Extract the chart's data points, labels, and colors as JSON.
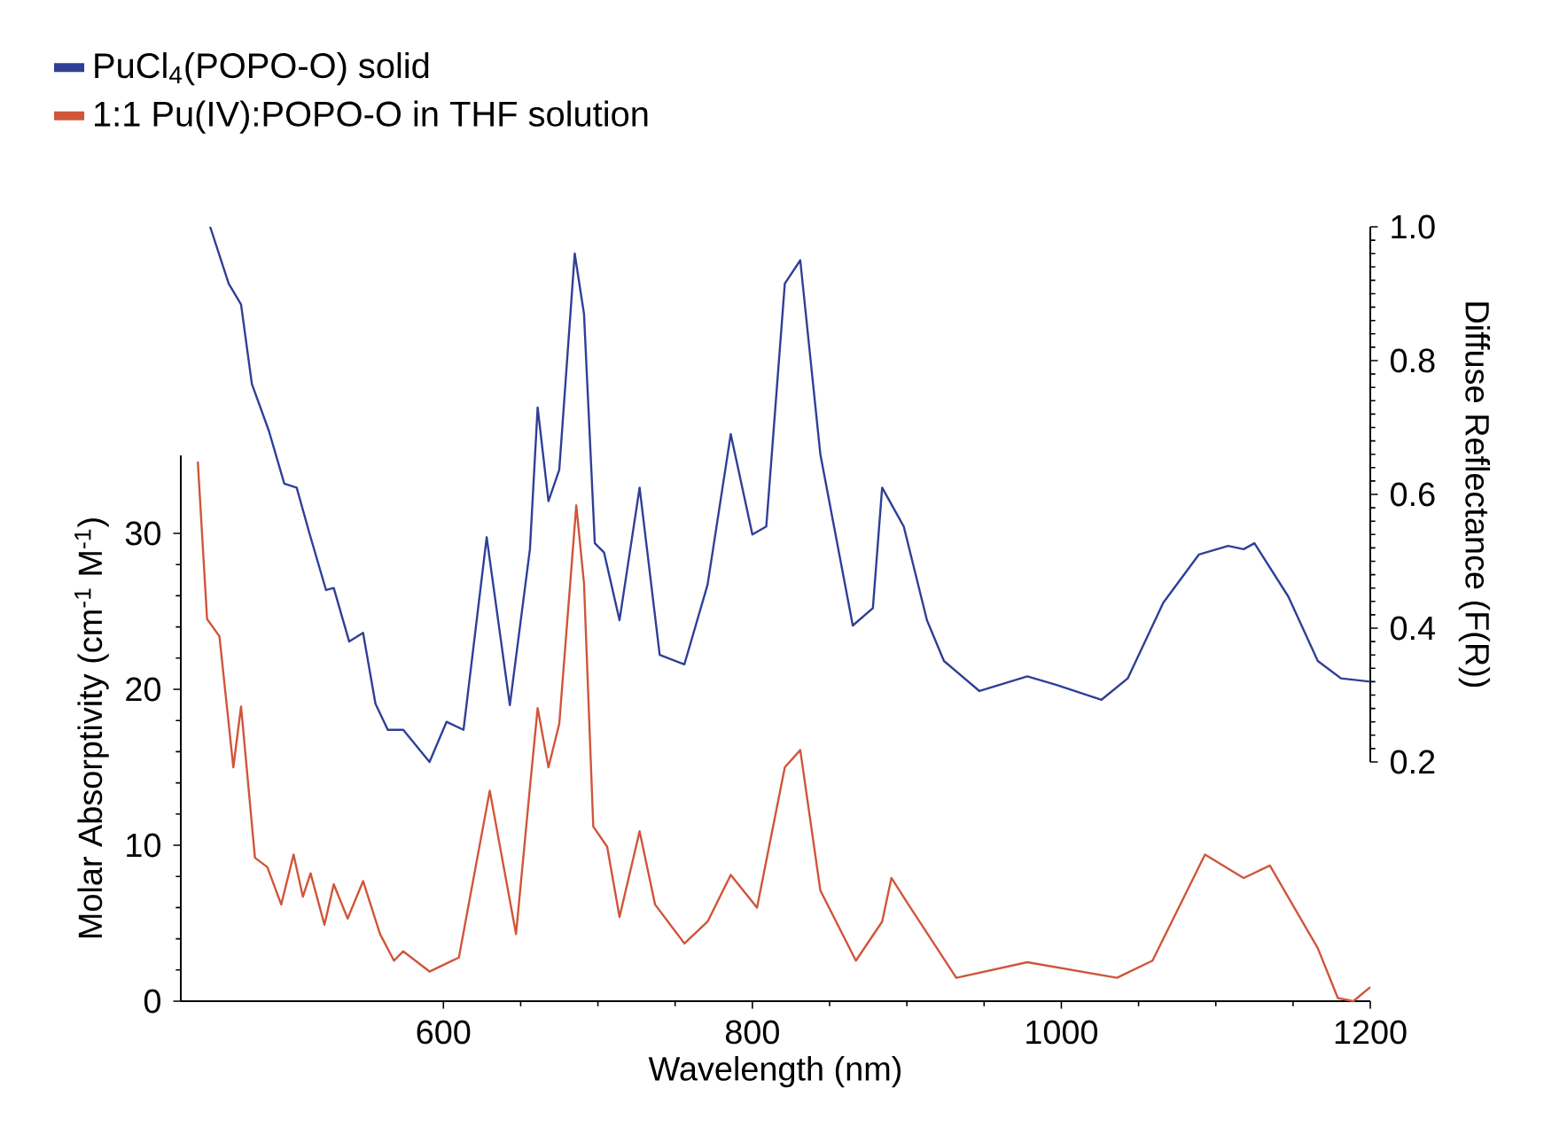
{
  "chart_data": {
    "type": "line",
    "xlabel": "Wavelength (nm)",
    "ylabel": "Molar Absorptivity (cm$^{-1}$ M$^{-1}$)",
    "y2label": "Diffuse Reflectance (F(R))",
    "xlim": [
      430,
      1200
    ],
    "xticks": [
      600,
      800,
      1000,
      1200
    ],
    "ylim": [
      0,
      35
    ],
    "yticks": [
      0,
      10,
      20,
      30
    ],
    "y2lim": [
      0.2,
      1.0
    ],
    "y2ticks": [
      0.2,
      0.4,
      0.6,
      0.8,
      {
        "value": 1,
        "label": "1.0"
      }
    ],
    "legend": "top left",
    "marker": "none",
    "line_style": "solid",
    "series": [
      {
        "name": "PuCl$_{4}$(POPO-O) solid",
        "color": "#2f3f96",
        "axis": "y2",
        "x": [
          449,
          461,
          469,
          476,
          487,
          497,
          505,
          513,
          524,
          529,
          539,
          548,
          556,
          564,
          574,
          591,
          602,
          613,
          628,
          643,
          656,
          661,
          668,
          675,
          685,
          691,
          698,
          704,
          714,
          727,
          740,
          756,
          771,
          786,
          800,
          809,
          821,
          831,
          844,
          865,
          878,
          884,
          898,
          913,
          924,
          947,
          978,
          997,
          1026,
          1043,
          1066,
          1089,
          1108,
          1118,
          1125,
          1147,
          1166,
          1181,
          1200
        ],
        "values": [
          1.0,
          0.915,
          0.884,
          0.765,
          0.695,
          0.616,
          0.61,
          0.544,
          0.457,
          0.46,
          0.38,
          0.393,
          0.287,
          0.248,
          0.248,
          0.2,
          0.26,
          0.248,
          0.536,
          0.285,
          0.518,
          0.73,
          0.59,
          0.637,
          0.96,
          0.87,
          0.527,
          0.513,
          0.412,
          0.61,
          0.36,
          0.346,
          0.465,
          0.69,
          0.54,
          0.552,
          0.915,
          0.95,
          0.66,
          0.404,
          0.43,
          0.61,
          0.552,
          0.412,
          0.351,
          0.306,
          0.328,
          0.315,
          0.293,
          0.325,
          0.438,
          0.51,
          0.523,
          0.518,
          0.527,
          0.447,
          0.351,
          0.325,
          0.32
        ]
      },
      {
        "name": "1:1 Pu(IV):POPO-O in THF solution",
        "color": "#d0553a",
        "x": [
          441,
          447,
          455,
          464,
          469,
          478,
          486,
          495,
          503,
          509,
          514,
          523,
          529,
          538,
          548,
          559,
          568,
          574,
          591,
          610,
          630,
          647,
          656,
          661,
          668,
          675,
          686,
          691,
          697,
          706,
          714,
          727,
          737,
          756,
          771,
          786,
          803,
          821,
          831,
          844,
          867,
          884,
          890,
          901,
          932,
          978,
          1036,
          1059,
          1093,
          1118,
          1135,
          1166,
          1179,
          1189,
          1200
        ],
        "values": [
          34.6,
          24.5,
          23.4,
          15.0,
          18.9,
          9.2,
          8.6,
          6.2,
          9.4,
          6.7,
          8.2,
          4.9,
          7.5,
          5.3,
          7.7,
          4.3,
          2.6,
          3.2,
          1.9,
          2.8,
          13.5,
          4.3,
          13.7,
          18.8,
          15.0,
          17.8,
          31.8,
          26.8,
          11.2,
          9.9,
          5.4,
          10.9,
          6.2,
          3.7,
          5.1,
          8.1,
          6.0,
          15.0,
          16.1,
          7.1,
          2.6,
          5.1,
          7.9,
          6.2,
          1.5,
          2.5,
          1.5,
          2.6,
          9.4,
          7.9,
          8.7,
          3.4,
          0.2,
          0.0,
          0.9
        ]
      }
    ]
  }
}
